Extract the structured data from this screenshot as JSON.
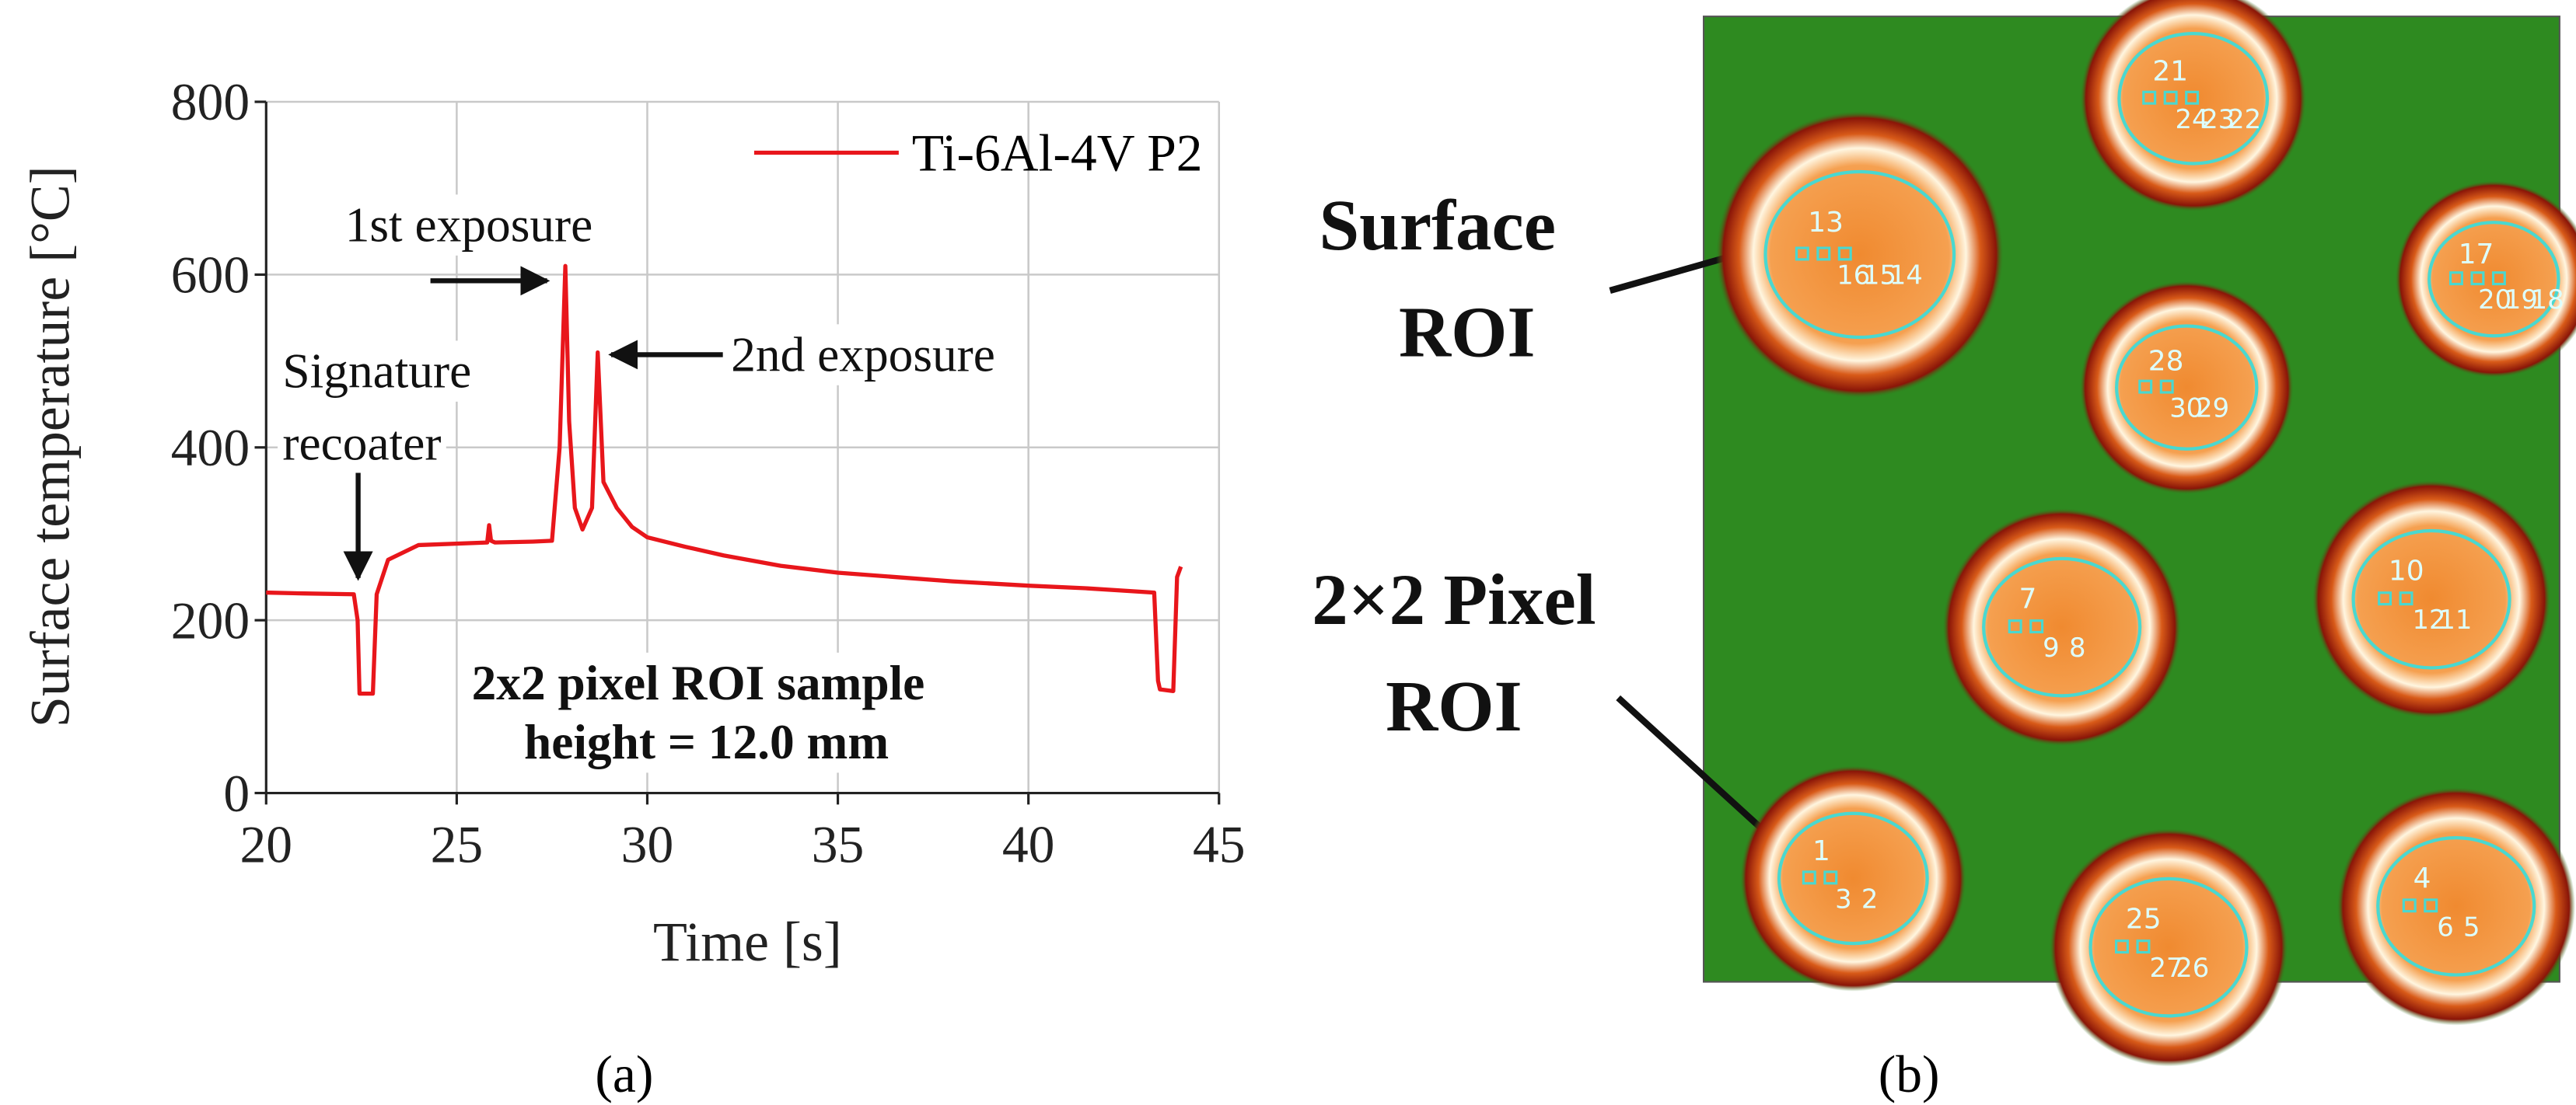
{
  "chart_data": {
    "type": "line",
    "y_label": "Surface temperature [°C]",
    "x_label": "Time [s]",
    "xlim": [
      20,
      45
    ],
    "xticks": [
      20,
      25,
      30,
      35,
      40,
      45
    ],
    "ylim": [
      0,
      800
    ],
    "yticks": [
      0,
      200,
      400,
      600,
      800
    ],
    "grid": true,
    "legend": "upper right",
    "series": [
      {
        "name": "Ti-6Al-4V P2",
        "color": "#e8161b",
        "x": [
          20,
          21,
          22.3,
          22.4,
          22.45,
          22.8,
          22.9,
          23.2,
          24,
          25.8,
          25.85,
          25.9,
          26,
          27,
          27.5,
          27.7,
          27.85,
          27.95,
          28.1,
          28.3,
          28.55,
          28.7,
          28.85,
          29.2,
          29.6,
          30,
          31,
          32,
          33.5,
          35,
          36.5,
          38,
          40,
          41.5,
          43.3,
          43.4,
          43.45,
          43.8,
          43.9,
          44
        ],
        "values": [
          232,
          231,
          230,
          200,
          115,
          115,
          230,
          270,
          287,
          290,
          310,
          292,
          290,
          291,
          292,
          400,
          610,
          430,
          330,
          305,
          330,
          510,
          360,
          330,
          308,
          296,
          285,
          275,
          263,
          255,
          250,
          245,
          240,
          237,
          232,
          130,
          120,
          118,
          250,
          262
        ]
      }
    ],
    "annotations": [
      "1st exposure",
      "2nd exposure",
      "Signature",
      "recoater",
      "2x2 pixel ROI sample",
      "height = 12.0 mm"
    ]
  },
  "panel_labels": [
    "(a)",
    "(b)"
  ],
  "image": {
    "labels": [
      "Surface",
      "ROI",
      "2×2 Pixel",
      "ROI"
    ],
    "rois": [
      {
        "id": "21",
        "pixels": [
          "24",
          "23",
          "22"
        ]
      },
      {
        "id": "13",
        "pixels": [
          "16",
          "15",
          "14"
        ]
      },
      {
        "id": "17",
        "pixels": [
          "20",
          "19",
          "18"
        ]
      },
      {
        "id": "28",
        "pixels": [
          "30",
          "29"
        ]
      },
      {
        "id": "7",
        "pixels": [
          "9",
          "8"
        ]
      },
      {
        "id": "10",
        "pixels": [
          "12",
          "11"
        ]
      },
      {
        "id": "1",
        "pixels": [
          "3",
          "2"
        ]
      },
      {
        "id": "25",
        "pixels": [
          "27",
          "26"
        ]
      },
      {
        "id": "4",
        "pixels": [
          "6",
          "5"
        ]
      }
    ]
  }
}
